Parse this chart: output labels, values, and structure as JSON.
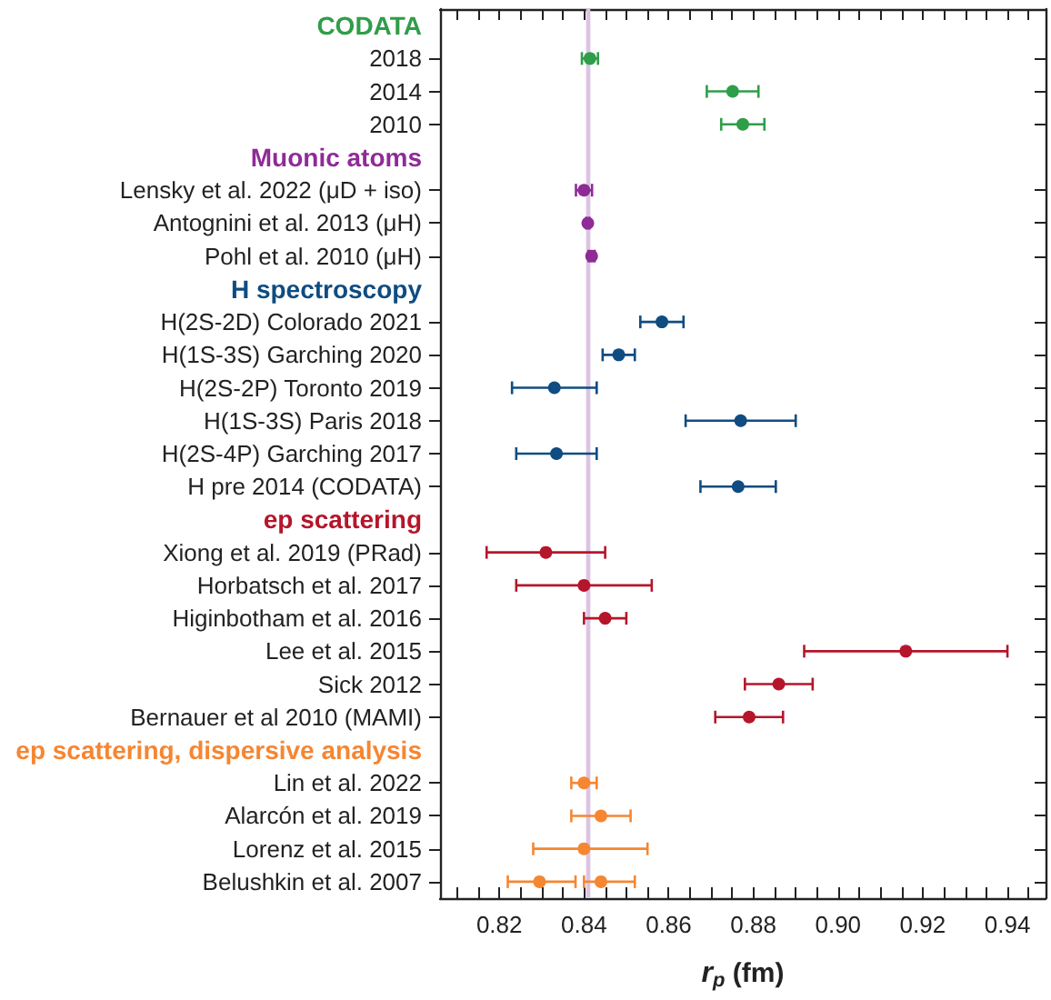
{
  "chart_data": {
    "type": "scatter",
    "orientation": "horizontal",
    "xlabel": "r$_{p}$ (fm)",
    "categories": [
      null,
      "2018",
      "2014",
      "2010",
      null,
      "Lensky et al. 2022 (μD + iso)",
      "Antognini et al. 2013 (μH)",
      "Pohl et al. 2010 (μH)",
      null,
      "H(2S-2D) Colorado 2021",
      "H(1S-3S) Garching 2020",
      "H(2S-2P) Toronto 2019",
      "H(1S-3S) Paris 2018",
      "H(2S-4P) Garching 2017",
      "H pre 2014 (CODATA)",
      null,
      "Xiong et al. 2019 (PRad)",
      "Horbatsch et al. 2017",
      "Higinbotham et al. 2016",
      "Lee et al. 2015",
      "Sick 2012",
      "Bernauer et al 2010 (MAMI)",
      null,
      "Lin et al. 2022",
      "Alarcón et al. 2019",
      "Lorenz et al. 2015",
      "Belushkin et al. 2007"
    ],
    "series": [
      {
        "name": "CODATA",
        "color": "#2e9e48",
        "values": [
          null,
          0.8414,
          0.8751,
          0.8775,
          null,
          null,
          null,
          null,
          null,
          null,
          null,
          null,
          null,
          null,
          null,
          null,
          null,
          null,
          null,
          null,
          null,
          null,
          null,
          null,
          null,
          null,
          null
        ],
        "errors": [
          null,
          0.0019,
          0.0061,
          0.0051,
          null,
          null,
          null,
          null,
          null,
          null,
          null,
          null,
          null,
          null,
          null,
          null,
          null,
          null,
          null,
          null,
          null,
          null,
          null,
          null,
          null,
          null,
          null
        ]
      },
      {
        "name": "Muonic atoms",
        "color": "#8e2b97",
        "values": [
          null,
          null,
          null,
          null,
          null,
          0.84,
          0.8409,
          0.8418,
          null,
          null,
          null,
          null,
          null,
          null,
          null,
          null,
          null,
          null,
          null,
          null,
          null,
          null,
          null,
          null,
          null,
          null,
          null
        ],
        "errors": [
          null,
          null,
          null,
          null,
          null,
          0.0019,
          0.0004,
          0.0007,
          null,
          null,
          null,
          null,
          null,
          null,
          null,
          null,
          null,
          null,
          null,
          null,
          null,
          null,
          null,
          null,
          null,
          null,
          null
        ]
      },
      {
        "name": "H spectroscopy",
        "color": "#0f4c81",
        "values": [
          null,
          null,
          null,
          null,
          null,
          null,
          null,
          null,
          null,
          0.8584,
          0.8482,
          0.833,
          0.877,
          0.8335,
          0.8764,
          null,
          null,
          null,
          null,
          null,
          null,
          null,
          null,
          null,
          null,
          null,
          null
        ],
        "errors": [
          null,
          null,
          null,
          null,
          null,
          null,
          null,
          null,
          null,
          0.0051,
          0.0038,
          0.01,
          0.013,
          0.0095,
          0.0089,
          null,
          null,
          null,
          null,
          null,
          null,
          null,
          null,
          null,
          null,
          null,
          null
        ]
      },
      {
        "name": "ep scattering",
        "color": "#b5162b",
        "values": [
          null,
          null,
          null,
          null,
          null,
          null,
          null,
          null,
          null,
          null,
          null,
          null,
          null,
          null,
          null,
          null,
          0.831,
          0.84,
          0.845,
          0.916,
          0.886,
          0.879,
          null,
          null,
          null,
          null,
          null
        ],
        "errors": [
          null,
          null,
          null,
          null,
          null,
          null,
          null,
          null,
          null,
          null,
          null,
          null,
          null,
          null,
          null,
          null,
          0.014,
          0.016,
          0.005,
          0.024,
          0.008,
          0.008,
          null,
          null,
          null,
          null,
          null
        ]
      },
      {
        "name": "ep scattering, dispersive analysis",
        "color": "#f58632",
        "values": [
          null,
          null,
          null,
          null,
          null,
          null,
          null,
          null,
          null,
          null,
          null,
          null,
          null,
          null,
          null,
          null,
          null,
          null,
          null,
          null,
          null,
          null,
          null,
          0.84,
          0.844,
          0.84,
          0.8295
        ],
        "errors": [
          null,
          null,
          null,
          null,
          null,
          null,
          null,
          null,
          null,
          null,
          null,
          null,
          null,
          null,
          null,
          null,
          null,
          null,
          null,
          null,
          null,
          null,
          null,
          [
            0.837,
            0.843
          ],
          [
            0.837,
            0.851
          ],
          [
            0.828,
            0.855
          ],
          [
            0.822,
            0.838
          ]
        ]
      },
      {
        "color": "#f58632",
        "values": [
          null,
          null,
          null,
          null,
          null,
          null,
          null,
          null,
          null,
          null,
          null,
          null,
          null,
          null,
          null,
          null,
          null,
          null,
          null,
          null,
          null,
          null,
          null,
          null,
          null,
          null,
          0.844
        ],
        "errors": [
          null,
          null,
          null,
          null,
          null,
          null,
          null,
          null,
          null,
          null,
          null,
          null,
          null,
          null,
          null,
          null,
          null,
          null,
          null,
          null,
          null,
          null,
          null,
          null,
          null,
          null,
          [
            0.84,
            0.852
          ]
        ]
      }
    ],
    "bands": [
      {
        "axis": "x",
        "from": 0.8405,
        "to": 0.8415,
        "color": "#dcc3e3"
      }
    ],
    "xlim": [
      0.806,
      0.949
    ],
    "xticks": [
      {
        "value": 0.81,
        "label": null
      },
      {
        "value": 0.815,
        "label": null
      },
      0.82,
      {
        "value": 0.825,
        "label": null
      },
      0.84,
      {
        "value": 0.835,
        "label": null
      },
      {
        "value": 0.83,
        "label": null
      },
      {
        "value": 0.845,
        "label": null
      },
      0.86,
      {
        "value": 0.85,
        "label": null
      },
      {
        "value": 0.855,
        "label": null
      },
      {
        "value": 0.865,
        "label": null
      },
      0.88,
      {
        "value": 0.87,
        "label": null
      },
      {
        "value": 0.875,
        "label": null
      },
      {
        "value": 0.885,
        "label": null
      },
      {
        "value": 0.9,
        "label": "0.90"
      },
      {
        "value": 0.89,
        "label": null
      },
      {
        "value": 0.895,
        "label": null
      },
      {
        "value": 0.905,
        "label": null
      },
      0.92,
      {
        "value": 0.91,
        "label": null
      },
      {
        "value": 0.915,
        "label": null
      },
      {
        "value": 0.925,
        "label": null
      },
      0.94,
      {
        "value": 0.93,
        "label": null
      },
      {
        "value": 0.935,
        "label": null
      },
      {
        "value": 0.945,
        "label": null
      }
    ],
    "marker": "circle",
    "grid": false
  }
}
